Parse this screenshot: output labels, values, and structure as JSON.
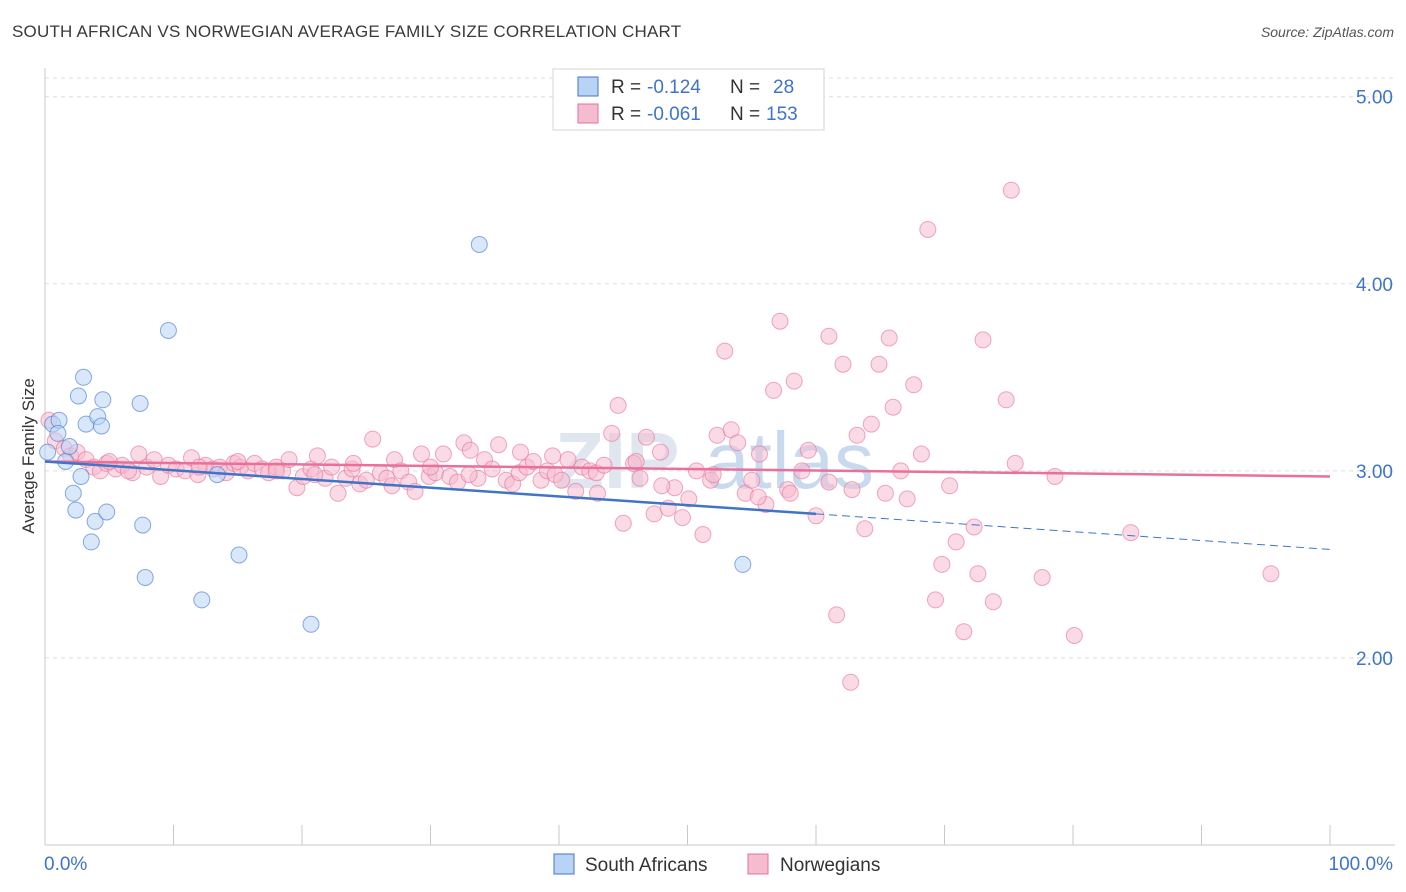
{
  "title": "SOUTH AFRICAN VS NORWEGIAN AVERAGE FAMILY SIZE CORRELATION CHART",
  "source": "Source: ZipAtlas.com",
  "watermark": {
    "a": "ZIP",
    "b": "atlas"
  },
  "colors": {
    "blue": "#3f74c9",
    "blue_fill": "#b9d3f5",
    "pink": "#e8709a",
    "pink_fill": "#f5bcd0"
  },
  "legend": {
    "r_label": "R =",
    "n_label": "N =",
    "rows": [
      {
        "r": "-0.124",
        "n": "28"
      },
      {
        "r": "-0.061",
        "n": "153"
      }
    ]
  },
  "chart_data": {
    "type": "scatter",
    "title": "SOUTH AFRICAN VS NORWEGIAN AVERAGE FAMILY SIZE CORRELATION CHART",
    "xlabel": "",
    "ylabel": "Average Family Size",
    "xlim": [
      0,
      100
    ],
    "ylim": [
      1.0,
      5.1
    ],
    "x_tick_labels": [
      "0.0%",
      "100.0%"
    ],
    "y_ticks": [
      2.0,
      3.0,
      4.0,
      5.0
    ],
    "y_tick_labels": [
      "2.00",
      "3.00",
      "4.00",
      "5.00"
    ],
    "grid": true,
    "legend_position": "top-center",
    "series": [
      {
        "name": "South Africans",
        "color": "#3f74c9",
        "points": [
          [
            0.2,
            3.1
          ],
          [
            0.6,
            3.25
          ],
          [
            1.1,
            3.27
          ],
          [
            1.6,
            3.05
          ],
          [
            1.9,
            3.13
          ],
          [
            2.4,
            2.79
          ],
          [
            2.6,
            3.4
          ],
          [
            2.8,
            2.97
          ],
          [
            3.0,
            3.5
          ],
          [
            3.2,
            3.25
          ],
          [
            3.6,
            2.62
          ],
          [
            3.9,
            2.73
          ],
          [
            4.1,
            3.29
          ],
          [
            4.4,
            3.24
          ],
          [
            4.5,
            3.38
          ],
          [
            4.8,
            2.78
          ],
          [
            7.4,
            3.36
          ],
          [
            7.6,
            2.71
          ],
          [
            7.8,
            2.43
          ],
          [
            9.6,
            3.75
          ],
          [
            12.2,
            2.31
          ],
          [
            13.4,
            2.98
          ],
          [
            15.1,
            2.55
          ],
          [
            20.7,
            2.18
          ],
          [
            33.8,
            4.21
          ],
          [
            54.3,
            2.5
          ],
          [
            1.0,
            3.2
          ],
          [
            2.2,
            2.88
          ]
        ],
        "trend": {
          "x": [
            0,
            60
          ],
          "y": [
            3.05,
            2.77
          ]
        },
        "trend_dashed": {
          "x": [
            60,
            100
          ],
          "y": [
            2.77,
            2.58
          ]
        }
      },
      {
        "name": "Norwegians",
        "color": "#e8709a",
        "points": [
          [
            0.3,
            3.27
          ],
          [
            0.8,
            3.16
          ],
          [
            1.5,
            3.12
          ],
          [
            2.0,
            3.08
          ],
          [
            2.5,
            3.1
          ],
          [
            3.2,
            3.06
          ],
          [
            3.8,
            3.02
          ],
          [
            4.3,
            3.0
          ],
          [
            4.8,
            3.04
          ],
          [
            5.5,
            3.01
          ],
          [
            6.0,
            3.03
          ],
          [
            6.8,
            2.99
          ],
          [
            7.3,
            3.09
          ],
          [
            7.9,
            3.02
          ],
          [
            8.5,
            3.06
          ],
          [
            9.0,
            2.97
          ],
          [
            9.6,
            3.03
          ],
          [
            10.2,
            3.01
          ],
          [
            10.9,
            3.0
          ],
          [
            11.4,
            3.07
          ],
          [
            11.9,
            2.98
          ],
          [
            12.5,
            3.03
          ],
          [
            13.1,
            3.01
          ],
          [
            13.6,
            3.02
          ],
          [
            14.1,
            2.99
          ],
          [
            14.7,
            3.04
          ],
          [
            15.2,
            3.02
          ],
          [
            15.8,
            3.0
          ],
          [
            16.3,
            3.04
          ],
          [
            16.9,
            3.01
          ],
          [
            17.4,
            2.99
          ],
          [
            18.0,
            3.02
          ],
          [
            18.5,
            3.0
          ],
          [
            19.0,
            3.06
          ],
          [
            19.6,
            2.91
          ],
          [
            20.1,
            2.97
          ],
          [
            20.7,
            3.01
          ],
          [
            21.2,
            3.08
          ],
          [
            21.8,
            2.96
          ],
          [
            22.3,
            3.02
          ],
          [
            22.8,
            2.88
          ],
          [
            23.4,
            2.96
          ],
          [
            23.9,
            3.01
          ],
          [
            24.5,
            2.93
          ],
          [
            25.0,
            2.95
          ],
          [
            25.5,
            3.17
          ],
          [
            26.1,
            2.99
          ],
          [
            26.6,
            2.96
          ],
          [
            27.2,
            3.06
          ],
          [
            27.7,
            3.0
          ],
          [
            28.3,
            2.94
          ],
          [
            28.8,
            2.89
          ],
          [
            29.3,
            3.09
          ],
          [
            29.9,
            2.97
          ],
          [
            30.4,
            2.99
          ],
          [
            31.0,
            3.09
          ],
          [
            31.5,
            2.97
          ],
          [
            32.1,
            2.94
          ],
          [
            32.6,
            3.15
          ],
          [
            33.1,
            3.11
          ],
          [
            33.7,
            2.96
          ],
          [
            34.2,
            3.06
          ],
          [
            34.8,
            3.01
          ],
          [
            35.3,
            3.14
          ],
          [
            35.9,
            2.95
          ],
          [
            36.4,
            2.93
          ],
          [
            36.9,
            2.99
          ],
          [
            37.5,
            3.02
          ],
          [
            38.0,
            3.05
          ],
          [
            38.6,
            2.95
          ],
          [
            39.1,
            3.0
          ],
          [
            39.7,
            2.98
          ],
          [
            40.2,
            2.95
          ],
          [
            40.7,
            3.06
          ],
          [
            41.3,
            2.89
          ],
          [
            41.8,
            3.02
          ],
          [
            42.4,
            3.0
          ],
          [
            42.9,
            2.99
          ],
          [
            43.5,
            3.03
          ],
          [
            44.1,
            3.2
          ],
          [
            44.6,
            3.35
          ],
          [
            45.0,
            2.72
          ],
          [
            45.8,
            3.04
          ],
          [
            46.3,
            2.96
          ],
          [
            46.8,
            3.18
          ],
          [
            47.4,
            2.77
          ],
          [
            47.9,
            3.1
          ],
          [
            48.5,
            2.8
          ],
          [
            49.0,
            2.91
          ],
          [
            49.6,
            2.75
          ],
          [
            50.1,
            2.85
          ],
          [
            50.7,
            3.0
          ],
          [
            51.2,
            2.66
          ],
          [
            51.8,
            2.95
          ],
          [
            52.3,
            3.19
          ],
          [
            52.9,
            3.64
          ],
          [
            53.4,
            3.22
          ],
          [
            53.9,
            3.15
          ],
          [
            54.5,
            2.88
          ],
          [
            55.0,
            2.95
          ],
          [
            55.6,
            3.09
          ],
          [
            56.1,
            2.82
          ],
          [
            56.7,
            3.43
          ],
          [
            57.2,
            3.8
          ],
          [
            57.8,
            2.9
          ],
          [
            58.3,
            3.48
          ],
          [
            58.9,
            3.0
          ],
          [
            59.4,
            3.11
          ],
          [
            60.0,
            2.76
          ],
          [
            61.0,
            3.72
          ],
          [
            61.6,
            2.23
          ],
          [
            62.1,
            3.57
          ],
          [
            62.7,
            1.87
          ],
          [
            63.2,
            3.19
          ],
          [
            63.8,
            2.69
          ],
          [
            64.3,
            3.25
          ],
          [
            64.9,
            3.57
          ],
          [
            65.4,
            2.88
          ],
          [
            66.0,
            3.34
          ],
          [
            66.6,
            3.0
          ],
          [
            67.1,
            2.85
          ],
          [
            67.6,
            3.46
          ],
          [
            68.2,
            3.09
          ],
          [
            68.7,
            4.29
          ],
          [
            69.3,
            2.31
          ],
          [
            69.8,
            2.5
          ],
          [
            70.4,
            2.92
          ],
          [
            70.9,
            2.62
          ],
          [
            71.5,
            2.14
          ],
          [
            72.6,
            2.45
          ],
          [
            73.0,
            3.7
          ],
          [
            73.8,
            2.3
          ],
          [
            74.8,
            3.38
          ],
          [
            75.2,
            4.5
          ],
          [
            75.5,
            3.04
          ],
          [
            77.6,
            2.43
          ],
          [
            78.6,
            2.97
          ],
          [
            80.1,
            2.12
          ],
          [
            84.5,
            2.67
          ],
          [
            95.4,
            2.45
          ],
          [
            61.0,
            2.94
          ],
          [
            65.7,
            3.71
          ],
          [
            72.3,
            2.7
          ],
          [
            58.0,
            2.88
          ],
          [
            55.5,
            2.86
          ],
          [
            62.8,
            2.9
          ],
          [
            52.0,
            2.98
          ],
          [
            48.0,
            2.92
          ],
          [
            46.0,
            3.05
          ],
          [
            43.0,
            2.88
          ],
          [
            39.5,
            3.08
          ],
          [
            37.0,
            3.1
          ],
          [
            33.0,
            2.98
          ],
          [
            30.0,
            3.02
          ],
          [
            27.0,
            2.92
          ],
          [
            24.0,
            3.04
          ],
          [
            21.0,
            2.98
          ],
          [
            18.0,
            3.0
          ],
          [
            15.0,
            3.05
          ],
          [
            12.0,
            3.02
          ],
          [
            6.5,
            3.0
          ],
          [
            5.0,
            3.05
          ]
        ],
        "trend": {
          "x": [
            0,
            100
          ],
          "y": [
            3.05,
            2.97
          ]
        }
      }
    ]
  },
  "bottom_legend": [
    "South Africans",
    "Norwegians"
  ]
}
